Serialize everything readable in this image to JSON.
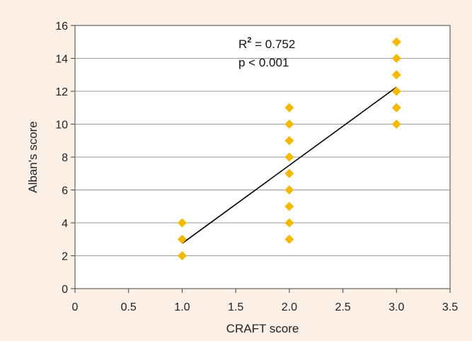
{
  "chart_data": {
    "type": "scatter",
    "xlabel": "CRAFT score",
    "ylabel": "Alban's score",
    "xlim": [
      0,
      3.5
    ],
    "ylim": [
      0,
      16
    ],
    "x_ticks": [
      "0",
      "0.5",
      "1.0",
      "1.5",
      "2.0",
      "2.5",
      "3.0",
      "3.5"
    ],
    "y_ticks": [
      "0",
      "2",
      "4",
      "6",
      "8",
      "10",
      "12",
      "14",
      "16"
    ],
    "grid": "horizontal",
    "points": [
      {
        "x": 1.0,
        "y": 2
      },
      {
        "x": 1.0,
        "y": 3
      },
      {
        "x": 1.0,
        "y": 4
      },
      {
        "x": 2.0,
        "y": 3
      },
      {
        "x": 2.0,
        "y": 4
      },
      {
        "x": 2.0,
        "y": 5
      },
      {
        "x": 2.0,
        "y": 6
      },
      {
        "x": 2.0,
        "y": 7
      },
      {
        "x": 2.0,
        "y": 8
      },
      {
        "x": 2.0,
        "y": 9
      },
      {
        "x": 2.0,
        "y": 10
      },
      {
        "x": 2.0,
        "y": 11
      },
      {
        "x": 3.0,
        "y": 10
      },
      {
        "x": 3.0,
        "y": 11
      },
      {
        "x": 3.0,
        "y": 12
      },
      {
        "x": 3.0,
        "y": 13
      },
      {
        "x": 3.0,
        "y": 14
      },
      {
        "x": 3.0,
        "y": 15
      }
    ],
    "trendline": {
      "x": [
        1.0,
        3.0
      ],
      "y": [
        2.75,
        12.25
      ]
    },
    "annotation": {
      "r_label": "R",
      "r_exp": "2",
      "r_value": " = 0.752",
      "p_label": "p < 0.001"
    },
    "colors": {
      "marker": "#f5b800",
      "line": "#000000",
      "grid": "#9a9a9a",
      "background": "#fbefe6",
      "plot_bg": "#ffffff"
    }
  }
}
